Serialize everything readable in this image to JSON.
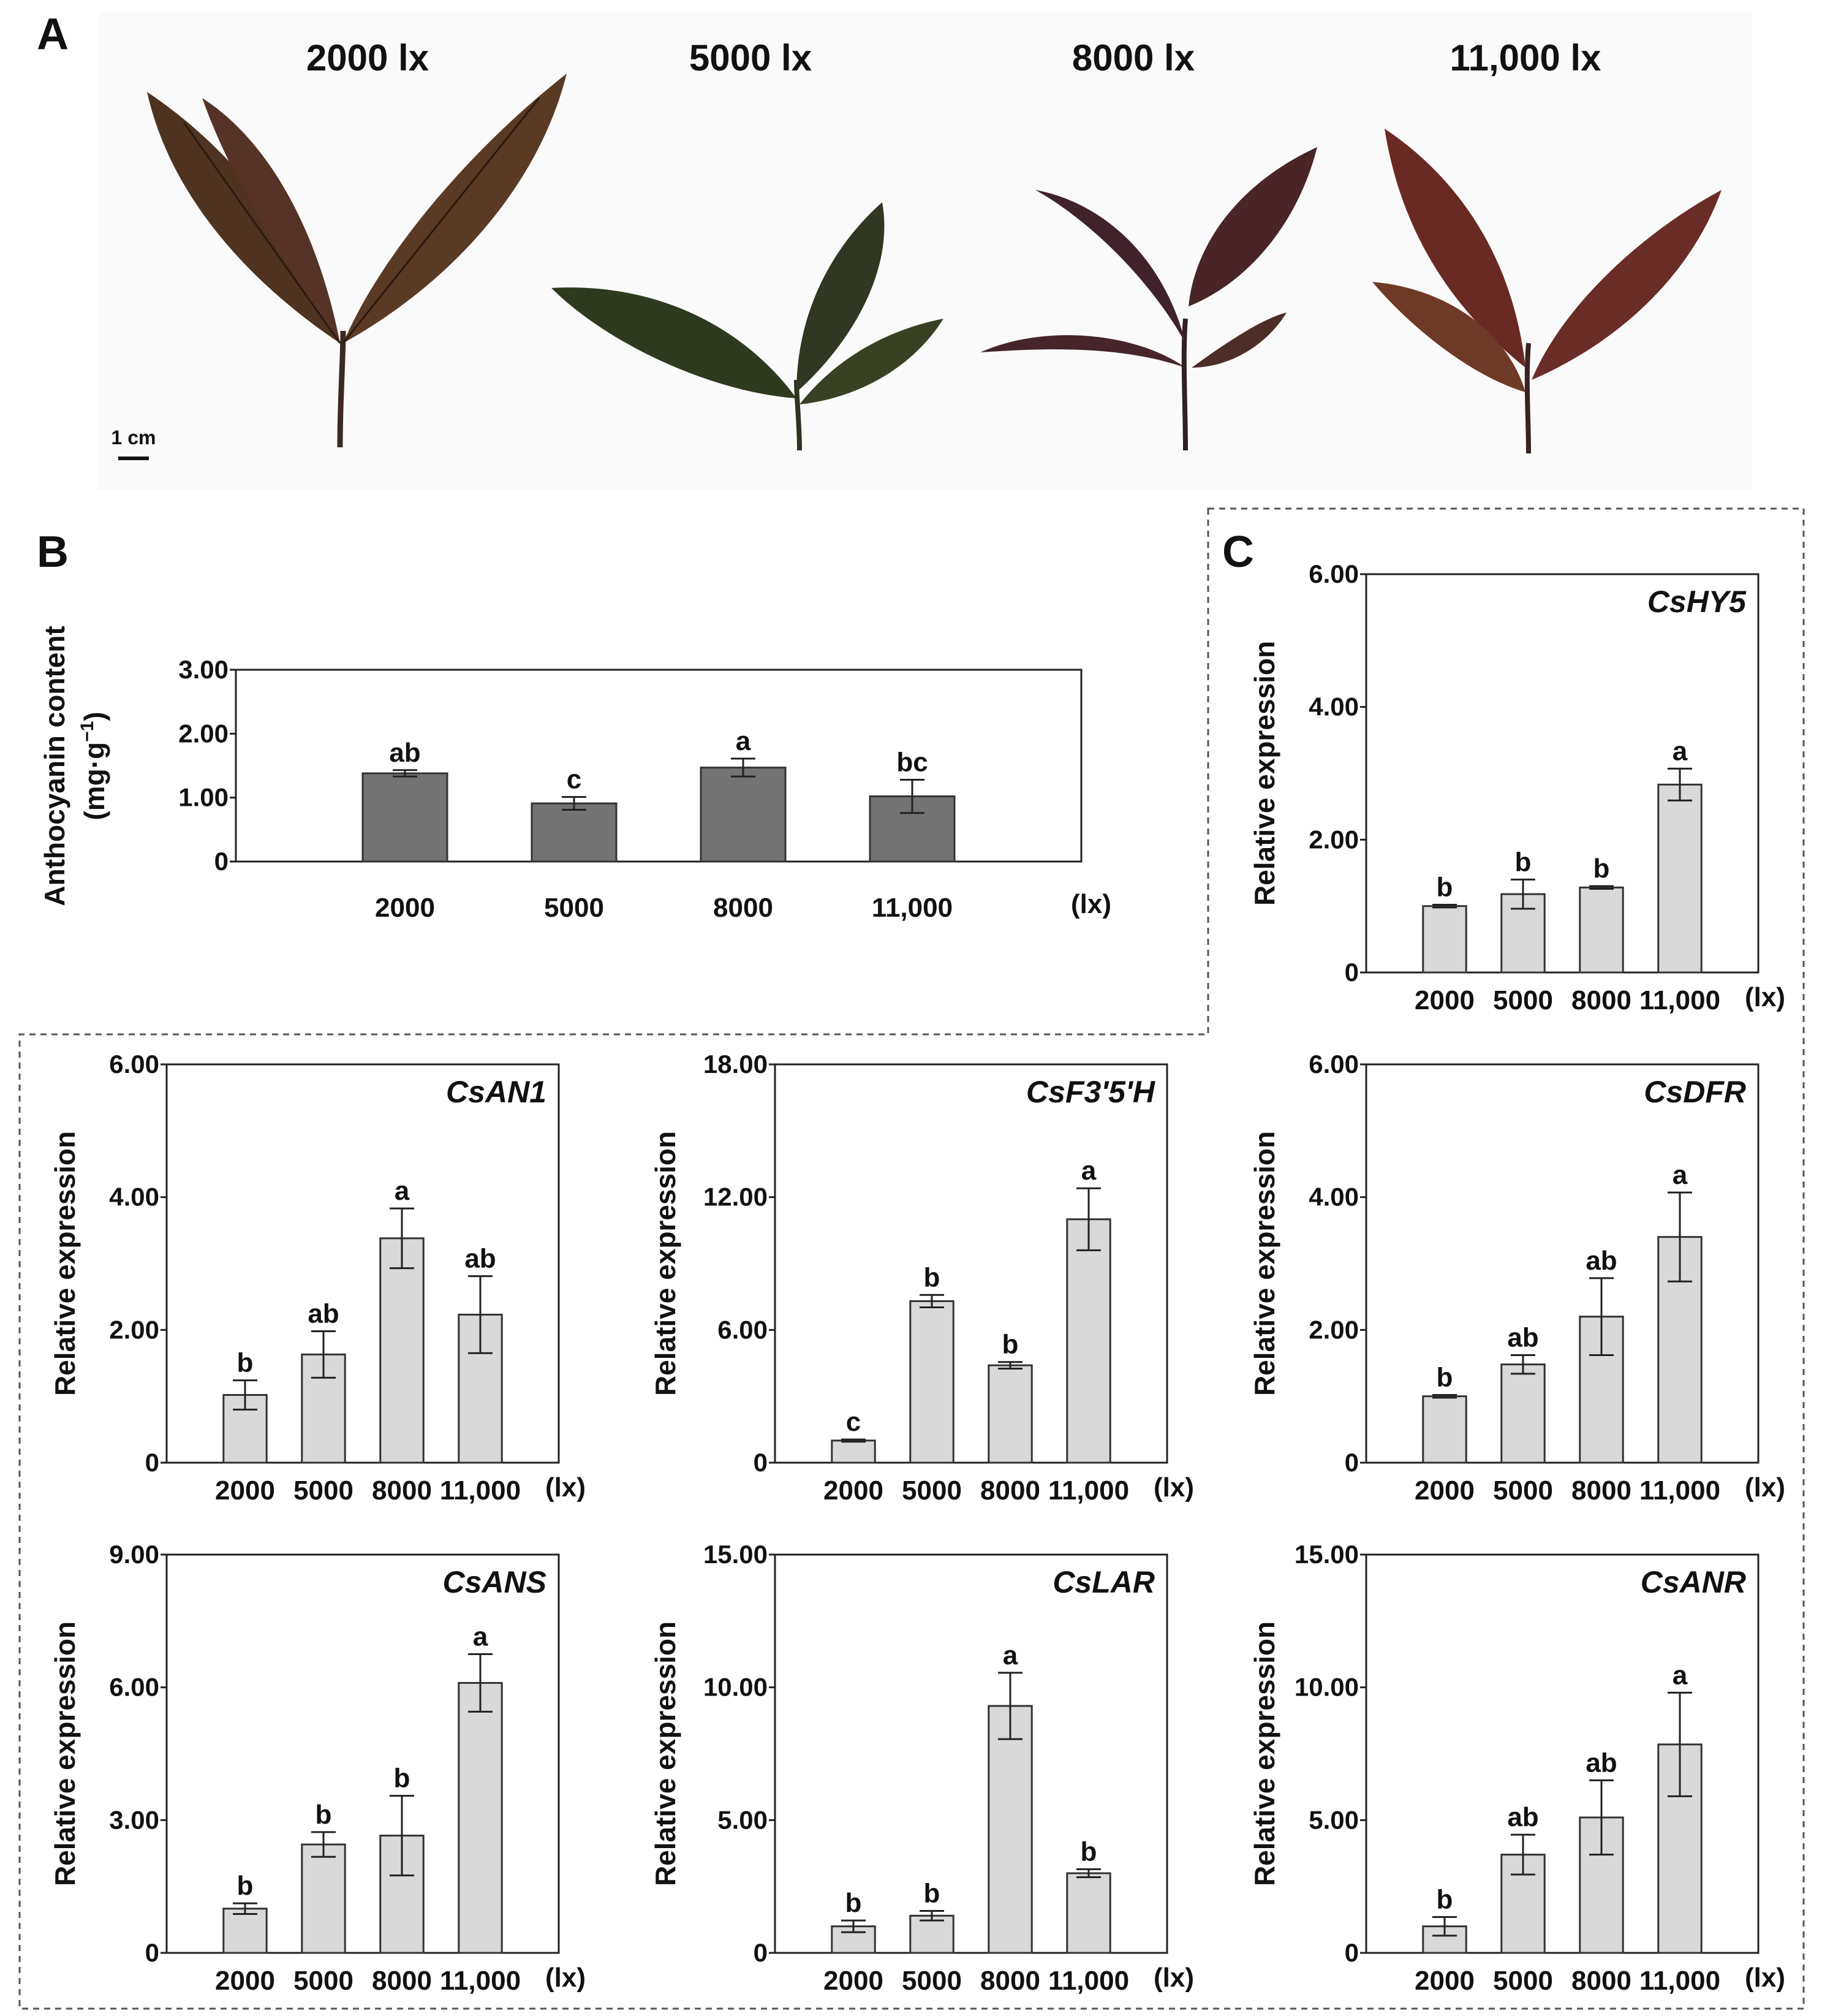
{
  "panel_a": {
    "letter": "A",
    "lux_labels": [
      "2000 lx",
      "5000 lx",
      "8000 lx",
      "11,000 lx"
    ],
    "scale_bar": "1 cm"
  },
  "unit_label": "(lx)",
  "colors": {
    "dark_bar": "#737373",
    "light_bar": "#d9d9d9",
    "leaf_dark": "#4a2a22",
    "leaf_green": "#3b4326",
    "leaf_red": "#6b2a24"
  },
  "chart_data": [
    {
      "id": "B",
      "panel_letter": "B",
      "type": "bar",
      "ylabel_line1": "Anthocyanin content",
      "ylabel_line2": "(mg·g",
      "ylabel_sup": "−1",
      "ylabel_end": ")",
      "categories": [
        "2000",
        "5000",
        "8000",
        "11,000"
      ],
      "values": [
        1.38,
        0.91,
        1.47,
        1.02
      ],
      "errors": [
        0.05,
        0.1,
        0.14,
        0.26
      ],
      "letters": [
        "ab",
        "c",
        "a",
        "bc"
      ],
      "ylim": [
        0,
        3.0
      ],
      "yticks": [
        "0",
        "1.00",
        "2.00",
        "3.00"
      ],
      "gene": ""
    },
    {
      "id": "C_HY5",
      "panel_letter": "C",
      "type": "bar",
      "gene": "CsHY5",
      "ylabel": "Relative expression",
      "categories": [
        "2000",
        "5000",
        "8000",
        "11,000"
      ],
      "values": [
        1.0,
        1.18,
        1.28,
        2.83
      ],
      "errors": [
        0.02,
        0.22,
        0.02,
        0.24
      ],
      "letters": [
        "b",
        "b",
        "b",
        "a"
      ],
      "ylim": [
        0,
        6.0
      ],
      "yticks": [
        "0",
        "2.00",
        "4.00",
        "6.00"
      ]
    },
    {
      "id": "AN1",
      "type": "bar",
      "gene": "CsAN1",
      "ylabel": "Relative expression",
      "categories": [
        "2000",
        "5000",
        "8000",
        "11,000"
      ],
      "values": [
        1.02,
        1.63,
        3.38,
        2.23
      ],
      "errors": [
        0.22,
        0.35,
        0.45,
        0.58
      ],
      "letters": [
        "b",
        "ab",
        "a",
        "ab"
      ],
      "ylim": [
        0,
        6.0
      ],
      "yticks": [
        "0",
        "2.00",
        "4.00",
        "6.00"
      ]
    },
    {
      "id": "F35H",
      "type": "bar",
      "gene": "CsF3'5'H",
      "ylabel": "Relative expression",
      "categories": [
        "2000",
        "5000",
        "8000",
        "11,000"
      ],
      "values": [
        1.0,
        7.3,
        4.4,
        11.0
      ],
      "errors": [
        0.05,
        0.28,
        0.15,
        1.4
      ],
      "letters": [
        "c",
        "b",
        "b",
        "a"
      ],
      "ylim": [
        0,
        18.0
      ],
      "yticks": [
        "0",
        "6.00",
        "12.00",
        "18.00"
      ]
    },
    {
      "id": "DFR",
      "type": "bar",
      "gene": "CsDFR",
      "ylabel": "Relative expression",
      "categories": [
        "2000",
        "5000",
        "8000",
        "11,000"
      ],
      "values": [
        1.0,
        1.48,
        2.2,
        3.4
      ],
      "errors": [
        0.02,
        0.14,
        0.58,
        0.67
      ],
      "letters": [
        "b",
        "ab",
        "ab",
        "a"
      ],
      "ylim": [
        0,
        6.0
      ],
      "yticks": [
        "0",
        "2.00",
        "4.00",
        "6.00"
      ]
    },
    {
      "id": "ANS",
      "type": "bar",
      "gene": "CsANS",
      "ylabel": "Relative expression",
      "categories": [
        "2000",
        "5000",
        "8000",
        "11,000"
      ],
      "values": [
        1.0,
        2.45,
        2.65,
        6.1
      ],
      "errors": [
        0.12,
        0.28,
        0.9,
        0.65
      ],
      "letters": [
        "b",
        "b",
        "b",
        "a"
      ],
      "ylim": [
        0,
        9.0
      ],
      "yticks": [
        "0",
        "3.00",
        "6.00",
        "9.00"
      ]
    },
    {
      "id": "LAR",
      "type": "bar",
      "gene": "CsLAR",
      "ylabel": "Relative expression",
      "categories": [
        "2000",
        "5000",
        "8000",
        "11,000"
      ],
      "values": [
        1.0,
        1.4,
        9.3,
        3.0
      ],
      "errors": [
        0.22,
        0.18,
        1.25,
        0.15
      ],
      "letters": [
        "b",
        "b",
        "a",
        "b"
      ],
      "ylim": [
        0,
        15.0
      ],
      "yticks": [
        "0",
        "5.00",
        "10.00",
        "15.00"
      ]
    },
    {
      "id": "ANR",
      "type": "bar",
      "gene": "CsANR",
      "ylabel": "Relative expression",
      "categories": [
        "2000",
        "5000",
        "8000",
        "11,000"
      ],
      "values": [
        1.0,
        3.7,
        5.1,
        7.85
      ],
      "errors": [
        0.35,
        0.75,
        1.4,
        1.95
      ],
      "letters": [
        "b",
        "ab",
        "ab",
        "a"
      ],
      "ylim": [
        0,
        15.0
      ],
      "yticks": [
        "0",
        "5.00",
        "10.00",
        "15.00"
      ]
    }
  ]
}
